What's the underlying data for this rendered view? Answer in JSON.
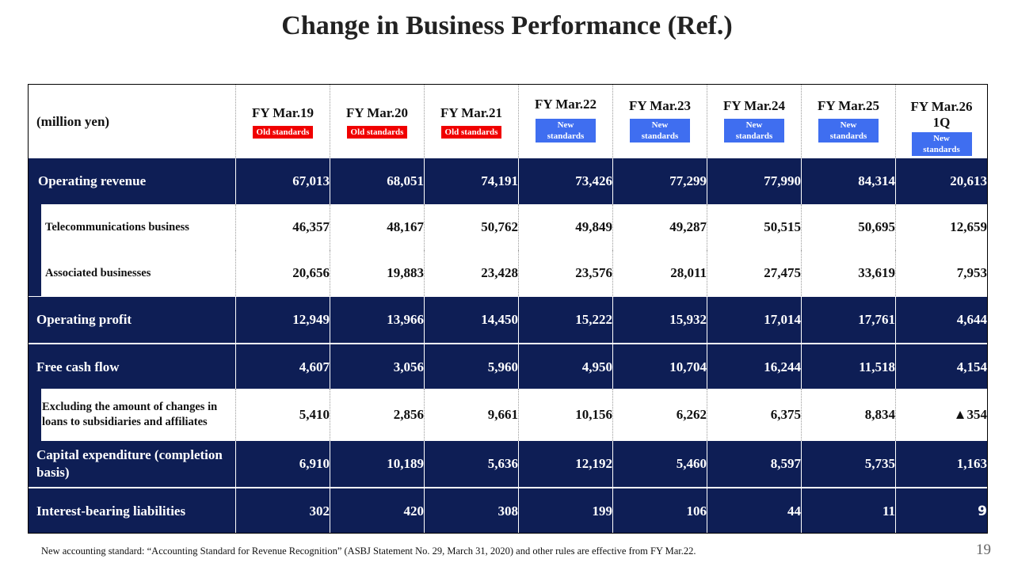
{
  "title": "Change in Business Performance (Ref.)",
  "unit_label": "(million yen)",
  "columns": [
    {
      "year": "FY Mar.19",
      "badge": "Old standards",
      "standard": "old"
    },
    {
      "year": "FY Mar.20",
      "badge": "Old standards",
      "standard": "old"
    },
    {
      "year": "FY Mar.21",
      "badge": "Old standards",
      "standard": "old"
    },
    {
      "year": "FY Mar.22",
      "badge": "New standards",
      "standard": "new"
    },
    {
      "year": "FY Mar.23",
      "badge": "New standards",
      "standard": "new"
    },
    {
      "year": "FY Mar.24",
      "badge": "New standards",
      "standard": "new"
    },
    {
      "year": "FY Mar.25",
      "badge": "New standards",
      "standard": "new"
    },
    {
      "year": "FY Mar.26 1Q",
      "badge": "New standards",
      "standard": "new"
    }
  ],
  "rows": [
    {
      "label": "Operating revenue",
      "values": [
        "67,013",
        "68,051",
        "74,191",
        "73,426",
        "77,299",
        "77,990",
        "84,314",
        "20,613"
      ]
    },
    {
      "label": "Telecommunications business",
      "values": [
        "46,357",
        "48,167",
        "50,762",
        "49,849",
        "49,287",
        "50,515",
        "50,695",
        "12,659"
      ]
    },
    {
      "label": "Associated businesses",
      "values": [
        "20,656",
        "19,883",
        "23,428",
        "23,576",
        "28,011",
        "27,475",
        "33,619",
        "7,953"
      ]
    },
    {
      "label": "Operating profit",
      "values": [
        "12,949",
        "13,966",
        "14,450",
        "15,222",
        "15,932",
        "17,014",
        "17,761",
        "4,644"
      ]
    },
    {
      "label": "Free cash flow",
      "values": [
        "4,607",
        "3,056",
        "5,960",
        "4,950",
        "10,704",
        "16,244",
        "11,518",
        "4,154"
      ]
    },
    {
      "label": "Excluding the amount of changes in loans to subsidiaries and affiliates",
      "values": [
        "5,410",
        "2,856",
        "9,661",
        "10,156",
        "6,262",
        "6,375",
        "8,834",
        "▲354"
      ]
    },
    {
      "label": "Capital expenditure (completion basis)",
      "values": [
        "6,910",
        "10,189",
        "5,636",
        "12,192",
        "5,460",
        "8,597",
        "5,735",
        "1,163"
      ]
    },
    {
      "label": "Interest-bearing liabilities",
      "values": [
        "302",
        "420",
        "308",
        "199",
        "106",
        "44",
        "11",
        "9"
      ]
    }
  ],
  "footnote": "New accounting standard: “Accounting Standard for Revenue Recognition” (ASBJ Statement No. 29, March 31, 2020) and other rules are effective from FY Mar.22.",
  "page_number": "19",
  "colors": {
    "navy": "#0e1e55",
    "old_badge": "#f00000",
    "new_badge": "#3f6ef0"
  }
}
